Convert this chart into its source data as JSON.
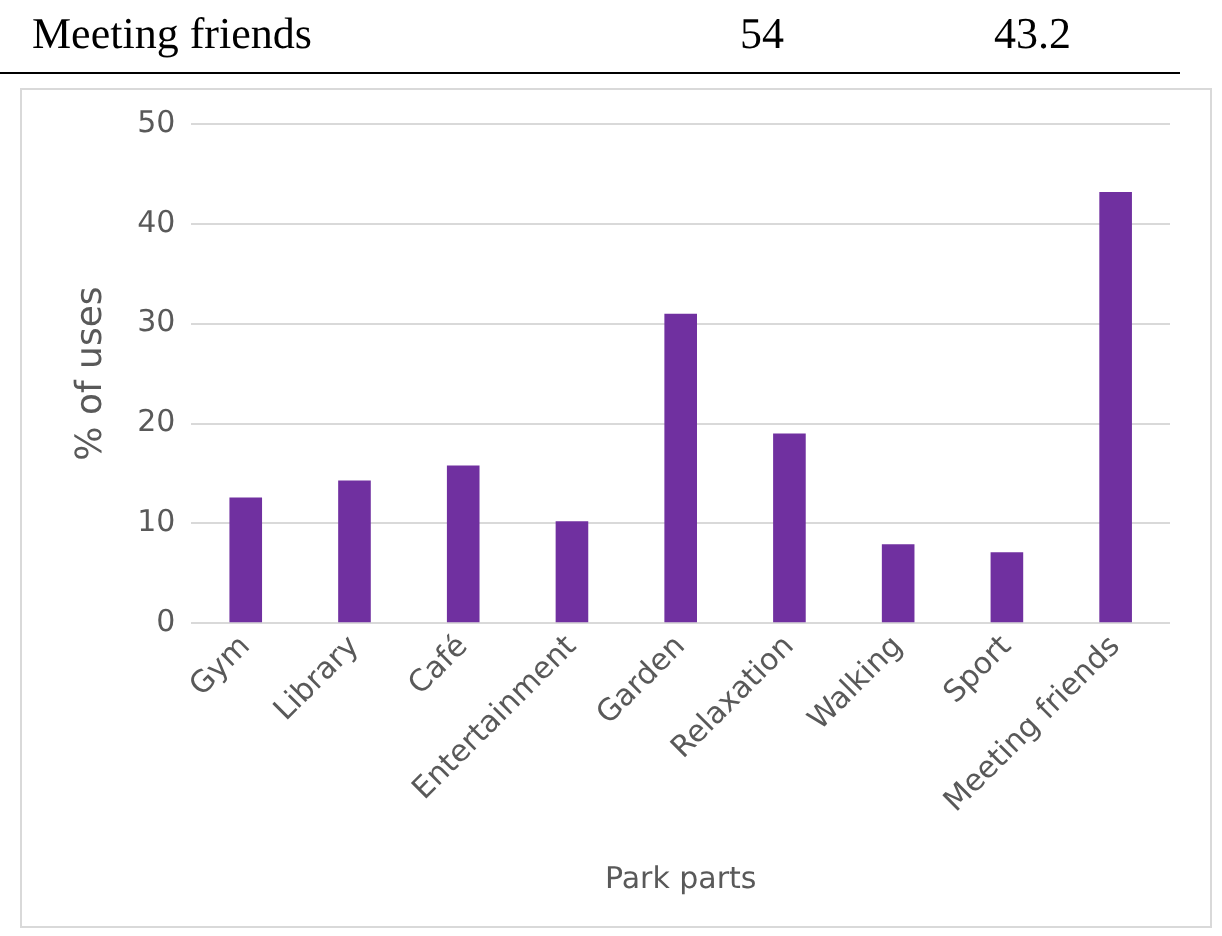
{
  "chart_data": {
    "type": "bar",
    "xlabel": "Park parts",
    "ylabel": "% of uses",
    "categories": [
      "Gym",
      "Library",
      "Café",
      "Entertainment",
      "Garden",
      "Relaxation",
      "Walking",
      "Sport",
      "Meeting friends"
    ],
    "values": [
      12.6,
      14.3,
      15.8,
      10.2,
      31.0,
      19.0,
      7.9,
      7.1,
      43.2
    ],
    "color": "#7030a0",
    "ylim": [
      0,
      50
    ],
    "yticks": [
      0,
      10,
      20,
      30,
      40,
      50
    ],
    "grid": "y",
    "legend": false,
    "annotations": [
      "Meeting friends",
      "54",
      "43.2"
    ]
  }
}
